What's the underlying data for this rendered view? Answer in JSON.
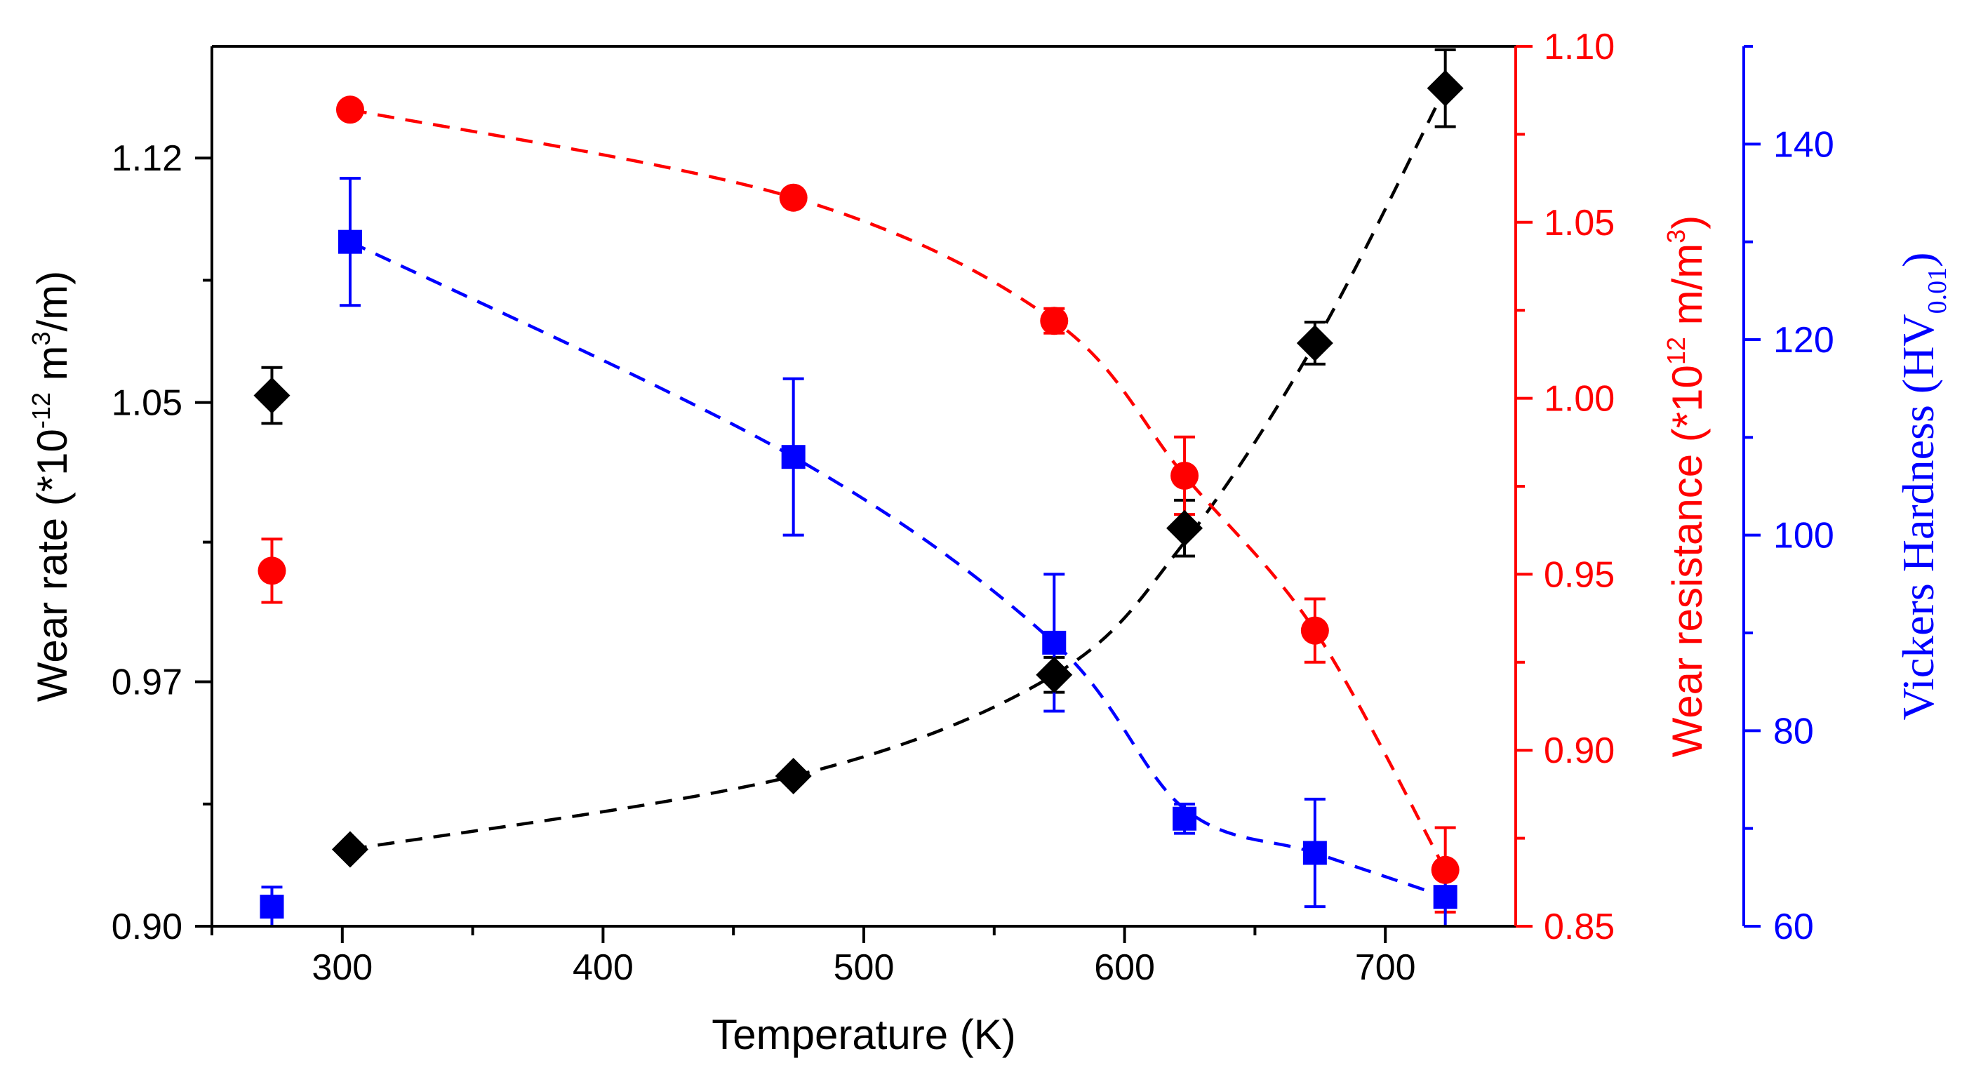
{
  "chart_data": {
    "type": "scatter",
    "title": "",
    "xlabel": "Temperature (K)",
    "xlim": [
      250,
      750
    ],
    "xticks": [
      300,
      400,
      500,
      600,
      700
    ],
    "axes": {
      "left": {
        "label_parts": [
          "Wear rate (*10",
          "-12",
          " m",
          "3",
          "/m)"
        ],
        "color": "#000000",
        "ylim": [
          0.9,
          1.152
        ],
        "ticks": [
          0.9,
          0.97,
          1.05,
          1.12
        ],
        "tick_labels": [
          "0.90",
          "0.97",
          "1.05",
          "1.12"
        ]
      },
      "right1": {
        "label_parts": [
          "Wear resistance (*10",
          "12",
          " m/m",
          "3",
          ")"
        ],
        "color": "#ff0000",
        "ylim": [
          0.85,
          1.1
        ],
        "ticks": [
          0.85,
          0.9,
          0.95,
          1.0,
          1.05,
          1.1
        ],
        "tick_labels": [
          "0.85",
          "0.90",
          "0.95",
          "1.00",
          "1.05",
          "1.10"
        ]
      },
      "right2": {
        "label_parts": [
          "Vickers Hardness (HV",
          "0.01",
          ")"
        ],
        "color": "#0000ff",
        "ylim": [
          60,
          150
        ],
        "ticks": [
          60,
          80,
          100,
          120,
          140
        ],
        "tick_labels": [
          "60",
          "80",
          "100",
          "120",
          "140"
        ]
      }
    },
    "series": [
      {
        "name": "Wear rate",
        "axis": "left",
        "marker": "diamond",
        "color": "#000000",
        "points": [
          {
            "x": 273,
            "y": 1.052,
            "err": 0.008
          },
          {
            "x": 303,
            "y": 0.922,
            "err": 0.0
          },
          {
            "x": 473,
            "y": 0.943,
            "err": 0.0
          },
          {
            "x": 573,
            "y": 0.972,
            "err": 0.005
          },
          {
            "x": 623,
            "y": 1.014,
            "err": 0.008
          },
          {
            "x": 673,
            "y": 1.067,
            "err": 0.006
          },
          {
            "x": 723,
            "y": 1.14,
            "err": 0.011
          }
        ],
        "fit": [
          {
            "x": 303,
            "y": 0.922
          },
          {
            "x": 473,
            "y": 0.943
          },
          {
            "x": 573,
            "y": 0.972
          },
          {
            "x": 623,
            "y": 1.01
          },
          {
            "x": 673,
            "y": 1.067
          },
          {
            "x": 723,
            "y": 1.14
          }
        ]
      },
      {
        "name": "Wear resistance",
        "axis": "right1",
        "marker": "circle",
        "color": "#ff0000",
        "points": [
          {
            "x": 273,
            "y": 0.951,
            "err": 0.009
          },
          {
            "x": 303,
            "y": 1.082,
            "err": 0.0
          },
          {
            "x": 473,
            "y": 1.057,
            "err": 0.0
          },
          {
            "x": 573,
            "y": 1.022,
            "err": 0.0035
          },
          {
            "x": 623,
            "y": 0.978,
            "err": 0.011
          },
          {
            "x": 673,
            "y": 0.934,
            "err": 0.009
          },
          {
            "x": 723,
            "y": 0.866,
            "err": 0.012
          }
        ],
        "fit": [
          {
            "x": 303,
            "y": 1.082
          },
          {
            "x": 473,
            "y": 1.057
          },
          {
            "x": 573,
            "y": 1.022
          },
          {
            "x": 623,
            "y": 0.978
          },
          {
            "x": 673,
            "y": 0.934
          },
          {
            "x": 723,
            "y": 0.866
          }
        ]
      },
      {
        "name": "Vickers Hardness",
        "axis": "right2",
        "marker": "square",
        "color": "#0000ff",
        "points": [
          {
            "x": 273,
            "y": 62.0,
            "err": 2.0
          },
          {
            "x": 303,
            "y": 130.0,
            "err": 6.5
          },
          {
            "x": 473,
            "y": 108.0,
            "err": 8.0
          },
          {
            "x": 573,
            "y": 89.0,
            "err": 7.0
          },
          {
            "x": 623,
            "y": 71.0,
            "err": 1.5
          },
          {
            "x": 673,
            "y": 67.5,
            "err": 5.5
          },
          {
            "x": 723,
            "y": 63.0,
            "err": 3.0
          }
        ],
        "fit": [
          {
            "x": 303,
            "y": 130.0
          },
          {
            "x": 473,
            "y": 108.0
          },
          {
            "x": 573,
            "y": 89.0
          },
          {
            "x": 623,
            "y": 72.0
          },
          {
            "x": 673,
            "y": 67.5
          },
          {
            "x": 723,
            "y": 63.0
          }
        ]
      }
    ]
  }
}
